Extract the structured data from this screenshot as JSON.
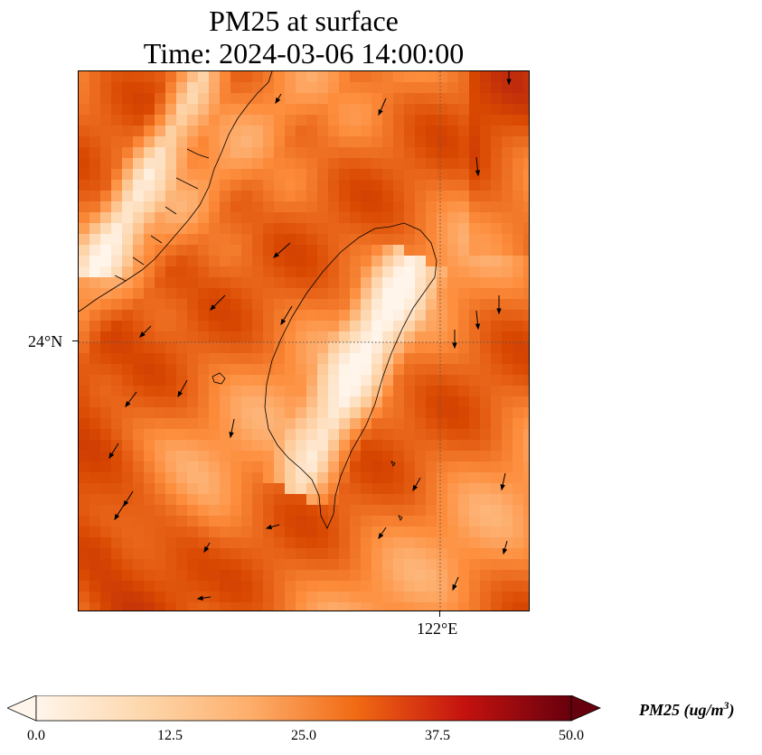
{
  "title": {
    "line1": "PM25 at surface",
    "line2": "Time: 2024-03-06 14:00:00"
  },
  "axes": {
    "lat_tick": "24°N",
    "lon_tick": "122°E",
    "gridlines": "dotted"
  },
  "colorbar": {
    "label_main": "PM25 (ug/m",
    "label_sup": "3",
    "label_close": ")",
    "ticks": [
      "0.0",
      "12.5",
      "25.0",
      "37.5",
      "50.0"
    ],
    "min": 0,
    "max": 50,
    "extend": "both",
    "colormap": [
      "#fff5eb",
      "#fdd0a2",
      "#fd8d3c",
      "#d94801",
      "#a50f15",
      "#67000d"
    ]
  },
  "colors": {
    "coastline": "#000000",
    "wind_vector": "#000000"
  }
}
